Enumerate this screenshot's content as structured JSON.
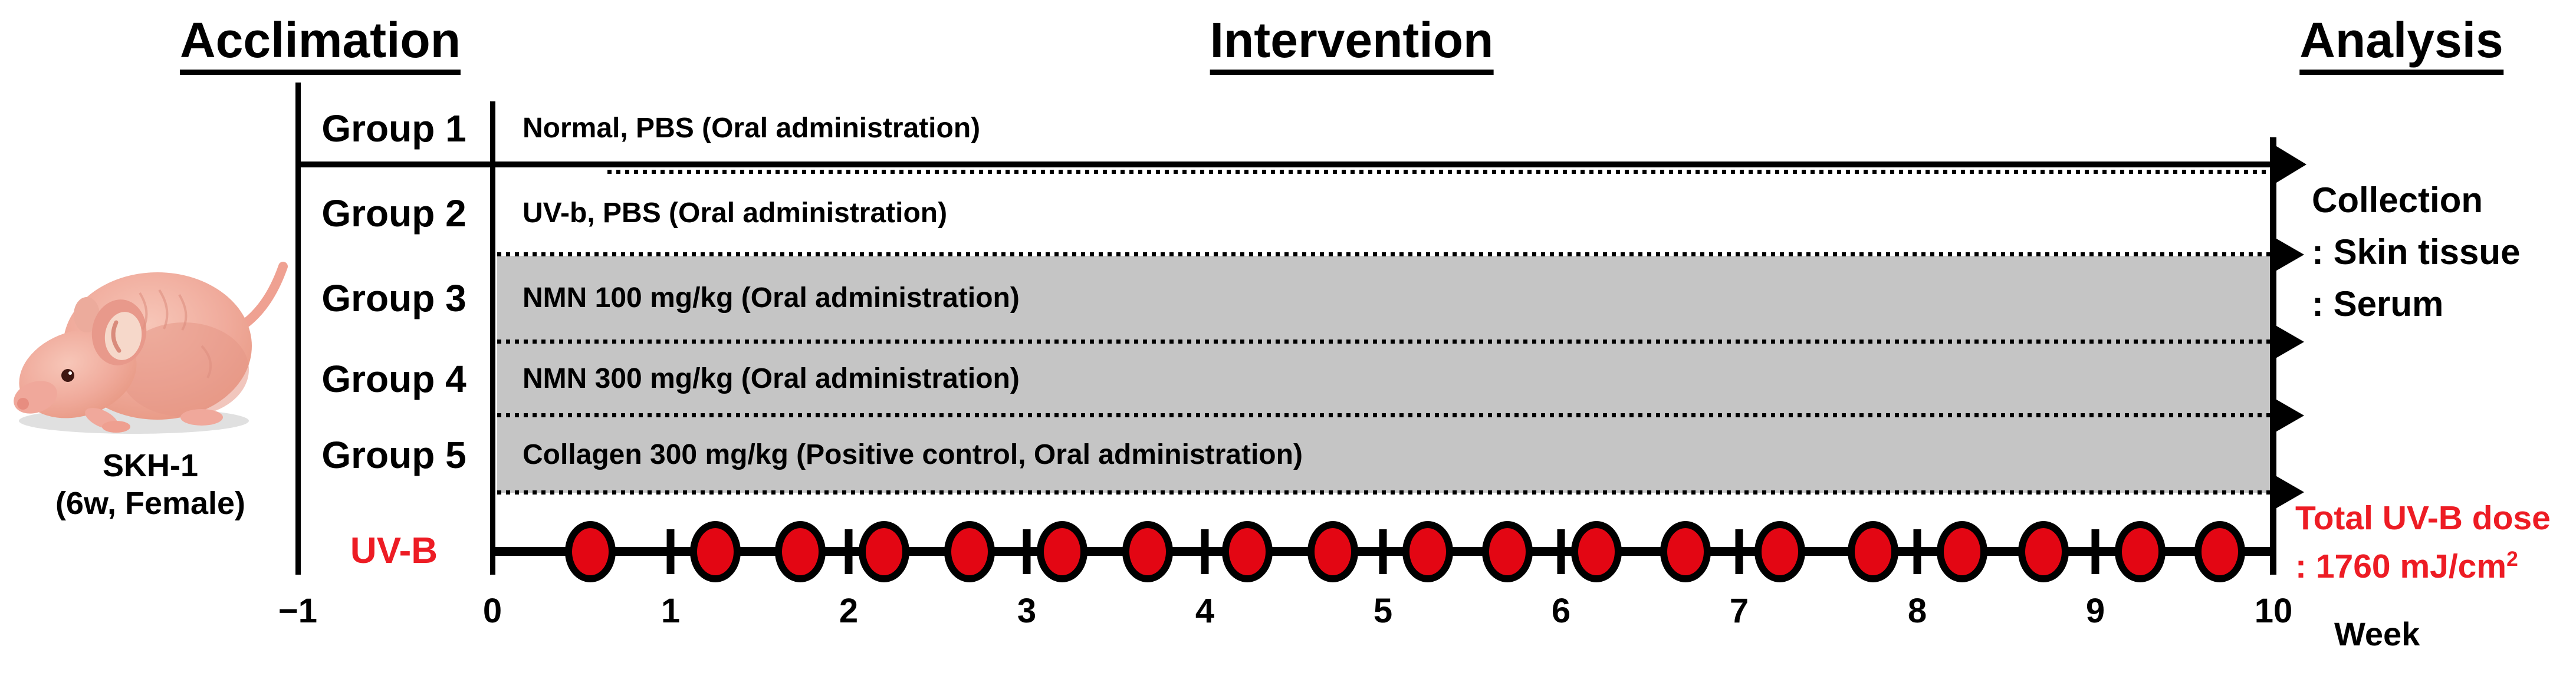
{
  "phases": {
    "acclimation": "Acclimation",
    "intervention": "Intervention",
    "analysis": "Analysis"
  },
  "subject": {
    "strain": "SKH-1",
    "details": "(6w, Female)"
  },
  "groups": [
    {
      "name": "Group 1",
      "treatment": "Normal, PBS (Oral administration)",
      "shaded": false
    },
    {
      "name": "Group 2",
      "treatment": "UV-b, PBS (Oral administration)",
      "shaded": false
    },
    {
      "name": "Group 3",
      "treatment": "NMN 100 mg/kg (Oral administration)",
      "shaded": true
    },
    {
      "name": "Group 4",
      "treatment": "NMN 300 mg/kg (Oral administration)",
      "shaded": true
    },
    {
      "name": "Group 5",
      "treatment": "Collagen 300 mg/kg (Positive control, Oral administration)",
      "shaded": true
    }
  ],
  "uvb": {
    "label": "UV-B",
    "dose_title": "Total UV-B dose",
    "dose_value": ": 1760 mJ/cm",
    "dose_exponent": "2",
    "exposure_weeks": [
      0.55,
      1.25,
      1.73,
      2.2,
      2.68,
      3.2,
      3.68,
      4.24,
      4.72,
      5.25,
      5.7,
      6.2,
      6.7,
      7.23,
      7.75,
      8.25,
      8.71,
      9.25,
      9.7
    ]
  },
  "collection": {
    "title": "Collection",
    "items": [
      ": Skin tissue",
      ": Serum"
    ]
  },
  "axis": {
    "unit": "Week",
    "weeks": [
      {
        "label": "−1",
        "value": -1
      },
      {
        "label": "0",
        "value": 0
      },
      {
        "label": "1",
        "value": 1
      },
      {
        "label": "2",
        "value": 2
      },
      {
        "label": "3",
        "value": 3
      },
      {
        "label": "4",
        "value": 4
      },
      {
        "label": "5",
        "value": 5
      },
      {
        "label": "6",
        "value": 6
      },
      {
        "label": "7",
        "value": 7
      },
      {
        "label": "8",
        "value": 8
      },
      {
        "label": "9",
        "value": 9
      },
      {
        "label": "10",
        "value": 10
      }
    ],
    "tick_weeks": [
      1,
      2,
      3,
      4,
      5,
      6,
      7,
      8,
      9
    ]
  },
  "colors": {
    "dot_red": "#e30613",
    "text_red": "#ed1c24",
    "shade_gray": "#c5c5c5",
    "black": "#000000"
  }
}
